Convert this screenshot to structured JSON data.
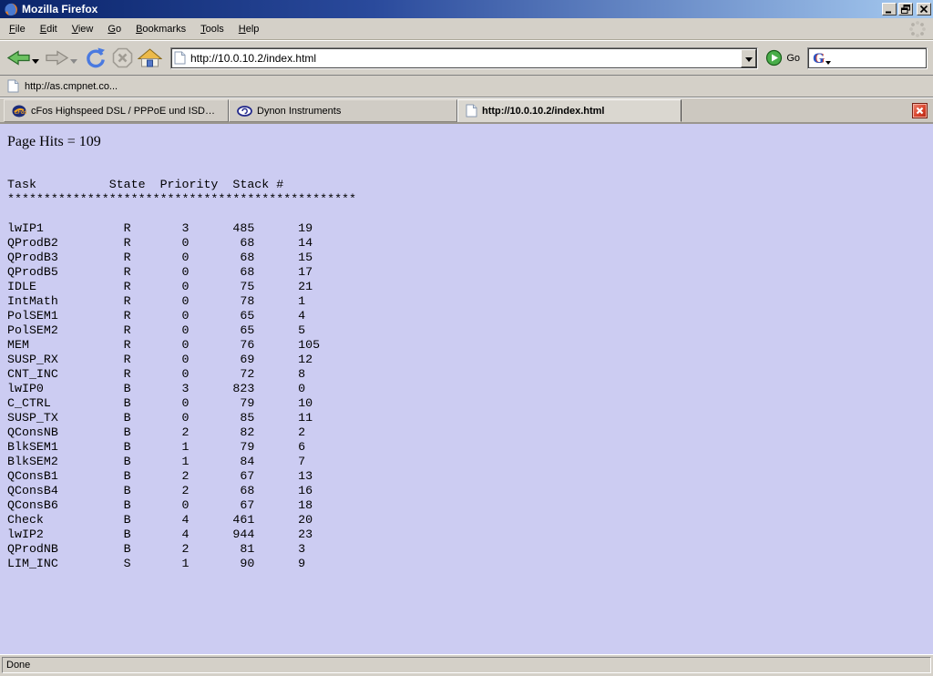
{
  "window": {
    "title": "Mozilla Firefox"
  },
  "menu": {
    "items": [
      "File",
      "Edit",
      "View",
      "Go",
      "Bookmarks",
      "Tools",
      "Help"
    ]
  },
  "nav": {
    "url": "http://10.0.10.2/index.html",
    "go_label": "Go",
    "search_engine": "Google",
    "search_value": ""
  },
  "bookmarks": {
    "items": [
      "http://as.cmpnet.co..."
    ]
  },
  "tabs": [
    {
      "label": "cFos Highspeed DSL / PPPoE und ISDN CAP...",
      "icon": "cfos-icon",
      "active": false
    },
    {
      "label": "Dynon Instruments",
      "icon": "dynon-icon",
      "active": false
    },
    {
      "label": "http://10.0.10.2/index.html",
      "icon": "page-icon",
      "active": true
    }
  ],
  "page": {
    "hits_line": "Page Hits = 109",
    "table": {
      "header_cols": [
        "Task",
        "State",
        "Priority",
        "Stack #"
      ],
      "separator": "************************************************",
      "rows": [
        [
          "lwIP1",
          "R",
          "3",
          "485",
          "19"
        ],
        [
          "QProdB2",
          "R",
          "0",
          "68",
          "14"
        ],
        [
          "QProdB3",
          "R",
          "0",
          "68",
          "15"
        ],
        [
          "QProdB5",
          "R",
          "0",
          "68",
          "17"
        ],
        [
          "IDLE",
          "R",
          "0",
          "75",
          "21"
        ],
        [
          "IntMath",
          "R",
          "0",
          "78",
          "1"
        ],
        [
          "PolSEM1",
          "R",
          "0",
          "65",
          "4"
        ],
        [
          "PolSEM2",
          "R",
          "0",
          "65",
          "5"
        ],
        [
          "MEM",
          "R",
          "0",
          "76",
          "105"
        ],
        [
          "SUSP_RX",
          "R",
          "0",
          "69",
          "12"
        ],
        [
          "CNT_INC",
          "R",
          "0",
          "72",
          "8"
        ],
        [
          "lwIP0",
          "B",
          "3",
          "823",
          "0"
        ],
        [
          "C_CTRL",
          "B",
          "0",
          "79",
          "10"
        ],
        [
          "SUSP_TX",
          "B",
          "0",
          "85",
          "11"
        ],
        [
          "QConsNB",
          "B",
          "2",
          "82",
          "2"
        ],
        [
          "BlkSEM1",
          "B",
          "1",
          "79",
          "6"
        ],
        [
          "BlkSEM2",
          "B",
          "1",
          "84",
          "7"
        ],
        [
          "QConsB1",
          "B",
          "2",
          "67",
          "13"
        ],
        [
          "QConsB4",
          "B",
          "2",
          "68",
          "16"
        ],
        [
          "QConsB6",
          "B",
          "0",
          "67",
          "18"
        ],
        [
          "Check",
          "B",
          "4",
          "461",
          "20"
        ],
        [
          "lwIP2",
          "B",
          "4",
          "944",
          "23"
        ],
        [
          "QProdNB",
          "B",
          "2",
          "81",
          "3"
        ],
        [
          "LIM_INC",
          "S",
          "1",
          "90",
          "9"
        ]
      ]
    }
  },
  "statusbar": {
    "text": "Done"
  },
  "colors": {
    "content_bg": "#ccccf2",
    "chrome": "#d4d0c8",
    "titlebar_start": "#0a246a",
    "titlebar_end": "#a6caf0",
    "tab_close_red": "#d8442c"
  }
}
